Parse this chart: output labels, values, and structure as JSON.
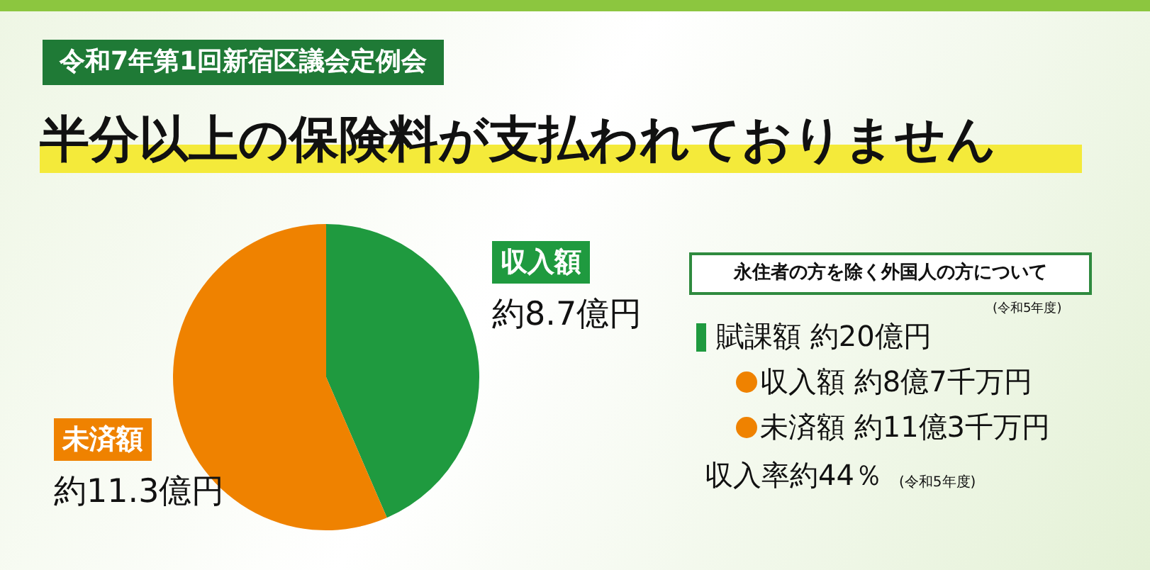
{
  "chart_data": {
    "type": "pie",
    "subtitle": "令和7年第1回新宿区議会定例会",
    "title": "半分以上の保険料が支払われておりません",
    "categories": [
      "収入額",
      "未済額"
    ],
    "values": [
      8.7,
      11.3
    ],
    "colors": [
      "#1f9a3f",
      "#ef8200"
    ],
    "value_labels": [
      "約8.7億円",
      "約11.3億円"
    ],
    "annotations": [
      "永住者の方を除く外国人の方について",
      "(令和5年度)",
      "賦課額 約20億円",
      "収入額 約8億7千万円",
      "未済額 約11億3千万円",
      "収入率約44％",
      "(令和5年度)"
    ]
  }
}
